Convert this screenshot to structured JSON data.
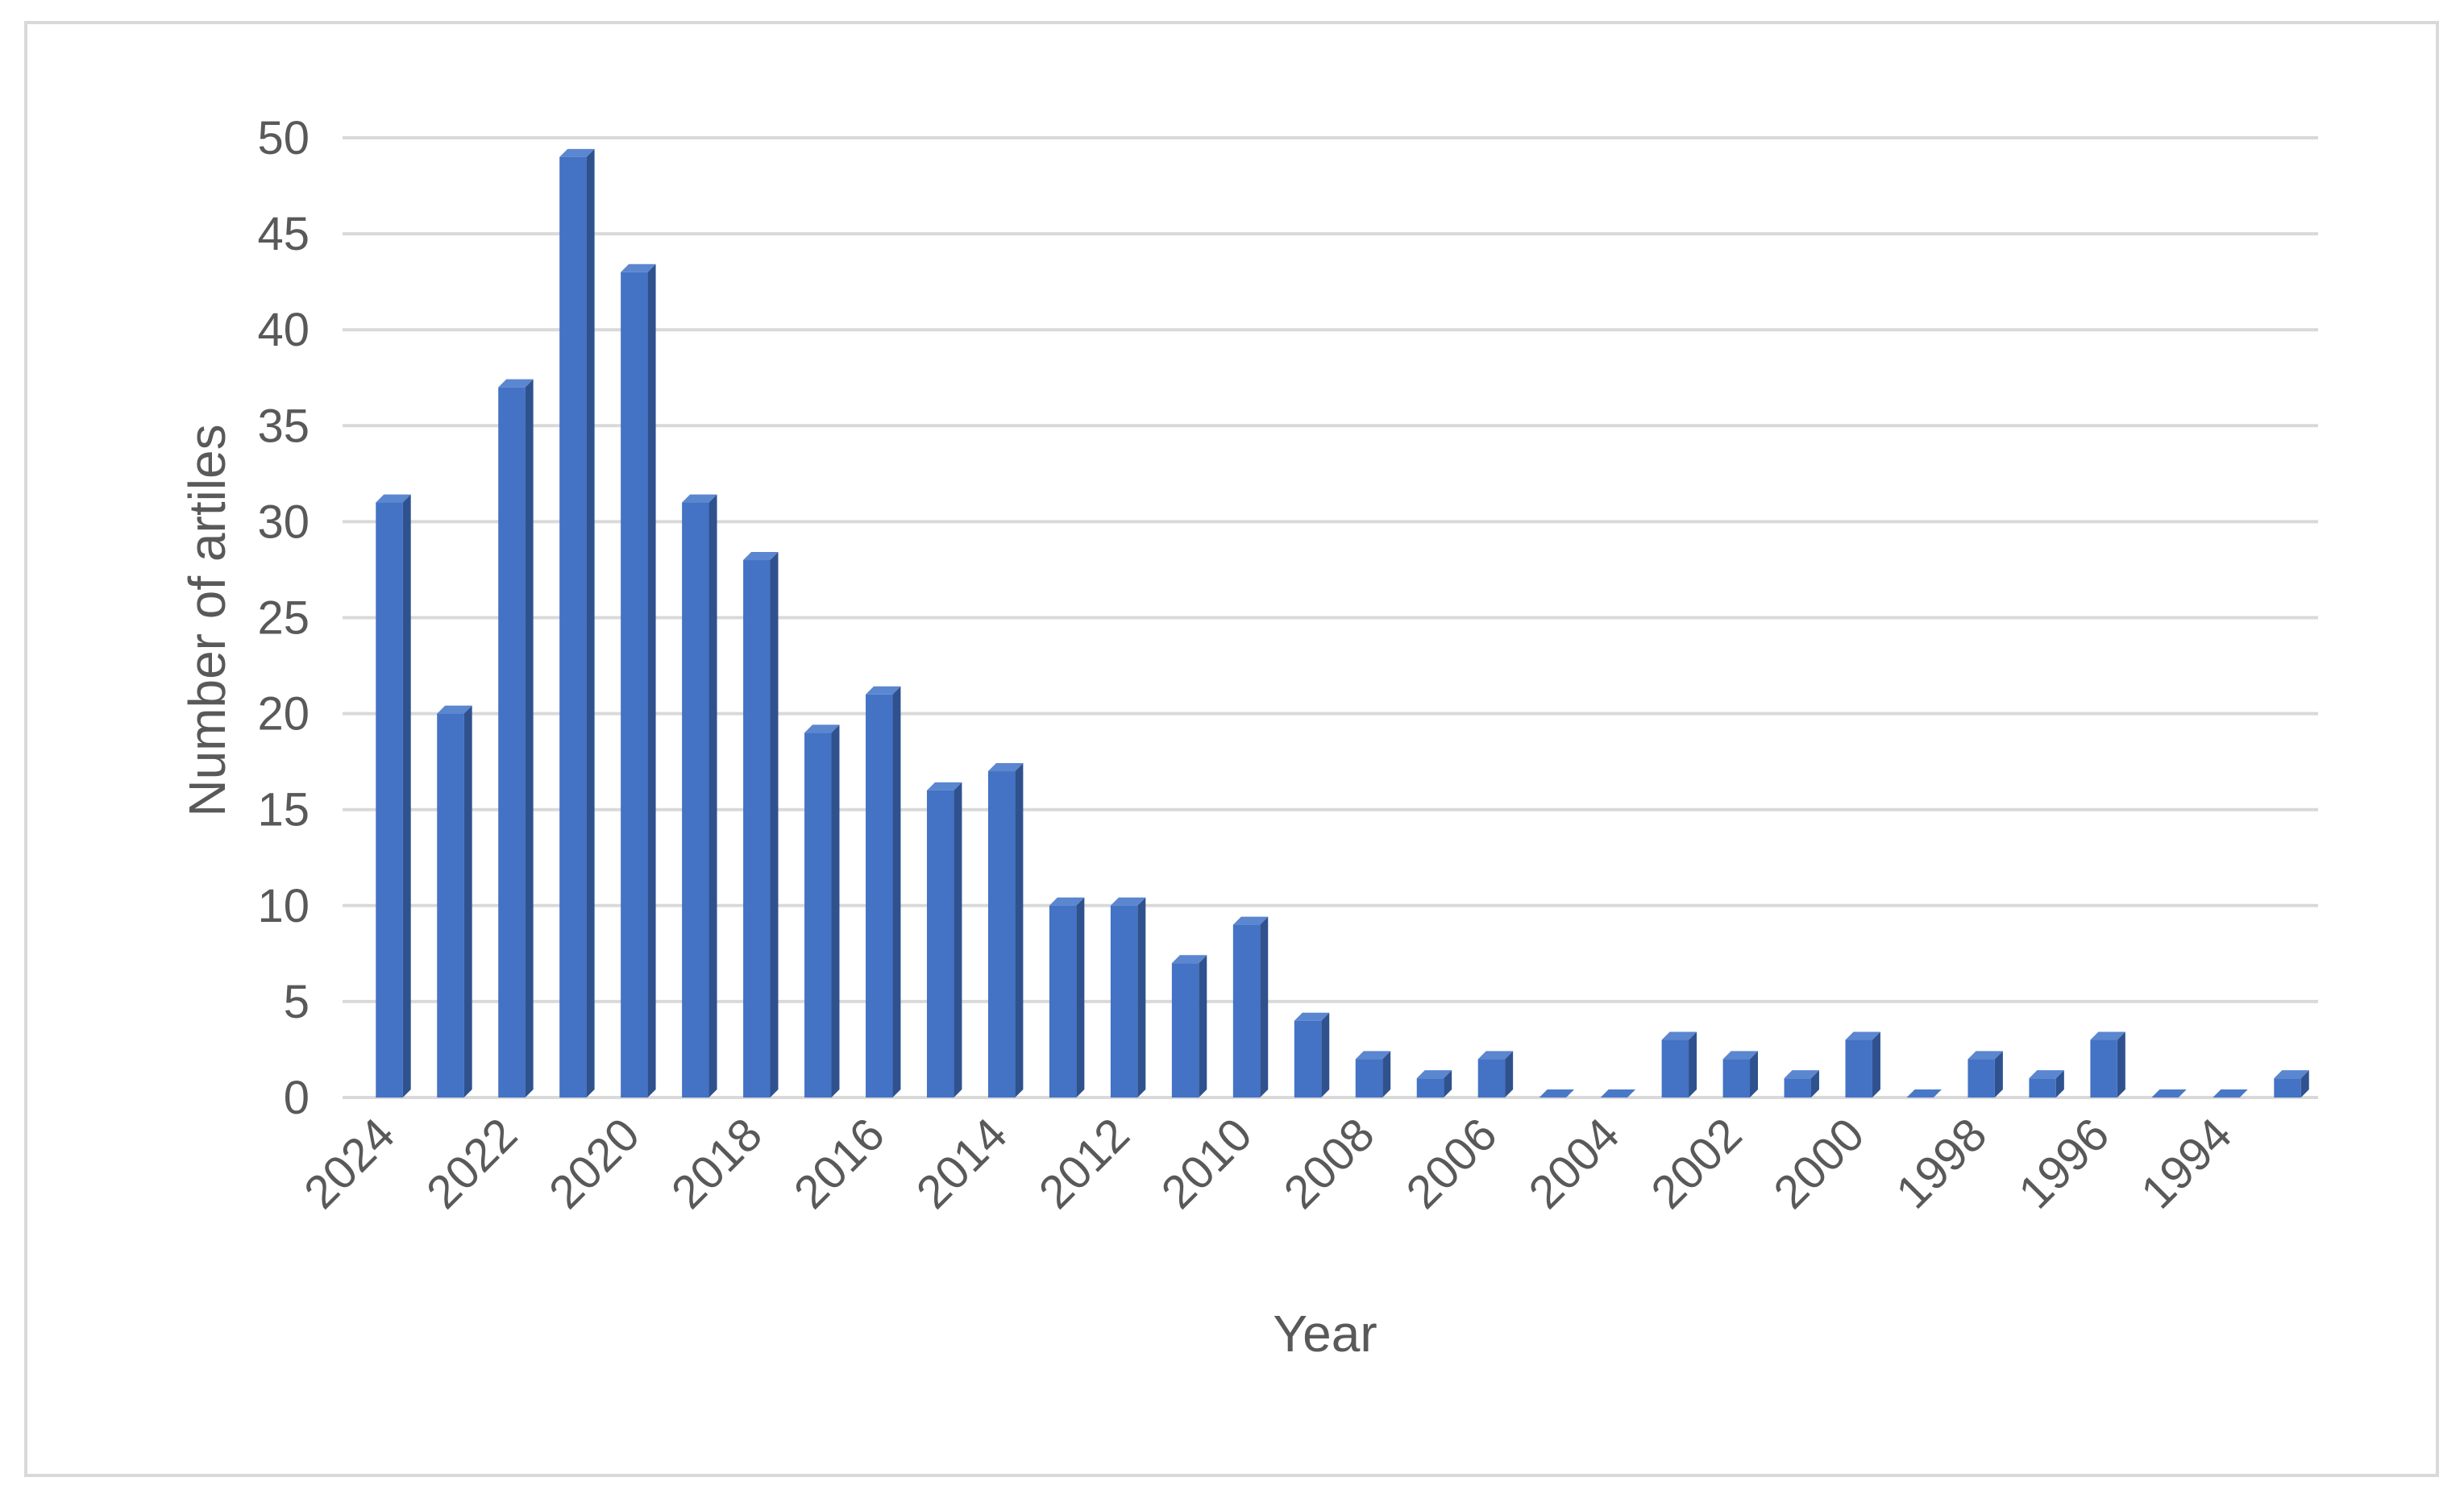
{
  "chart_data": {
    "type": "bar",
    "title": "",
    "xlabel": "Year",
    "ylabel": "Number of artiles",
    "ylim": [
      0,
      50
    ],
    "yticks": [
      0,
      5,
      10,
      15,
      20,
      25,
      30,
      35,
      40,
      45,
      50
    ],
    "grid": true,
    "legend": "none",
    "bar_color": "#4472c4",
    "categories": [
      "2024",
      "2023",
      "2022",
      "2021",
      "2020",
      "2019",
      "2018",
      "2017",
      "2016",
      "2015",
      "2014",
      "2013",
      "2012",
      "2011",
      "2010",
      "2009",
      "2008",
      "2007",
      "2006",
      "2005",
      "2004",
      "2003",
      "2002",
      "2001",
      "2000",
      "1999",
      "1998",
      "1997",
      "1996",
      "1995",
      "1994",
      "1993"
    ],
    "shown_category_labels": [
      "2024",
      "2022",
      "2020",
      "2018",
      "2016",
      "2014",
      "2012",
      "2010",
      "2008",
      "2006",
      "2004",
      "2002",
      "2000",
      "1998",
      "1996",
      "1994"
    ],
    "values": [
      31,
      20,
      37,
      49,
      43,
      31,
      28,
      19,
      21,
      16,
      17,
      10,
      10,
      7,
      9,
      4,
      2,
      1,
      2,
      0,
      0,
      3,
      2,
      1,
      3,
      0,
      2,
      1,
      3,
      0,
      0,
      1
    ]
  }
}
